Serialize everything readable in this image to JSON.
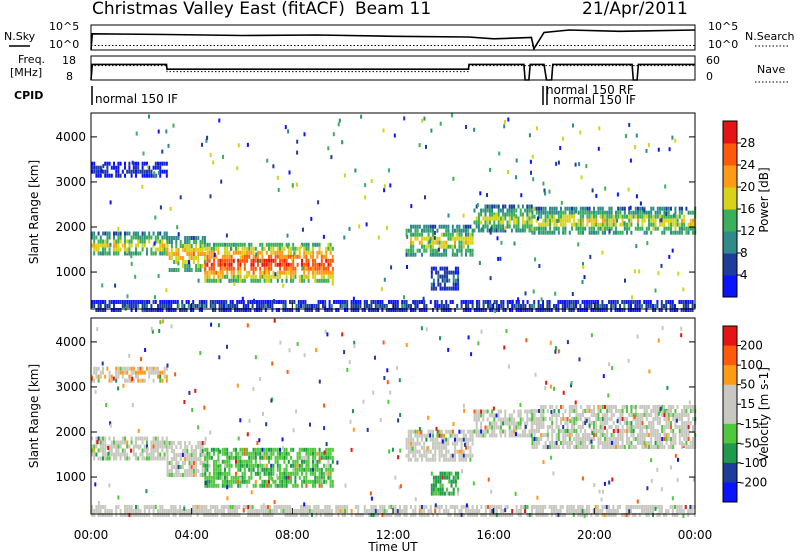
{
  "header": {
    "station": "Christmas Valley East (fitACF)",
    "beam": "Beam 11",
    "date": "21/Apr/2011"
  },
  "strip_labels": {
    "nsky": "N.Sky",
    "nsearch": "N.Search",
    "freq_line1": "Freq.",
    "freq_line2": "[MHz]",
    "nave": "Nave",
    "cpid": "CPID"
  },
  "strip_ticks": {
    "count_top": "10^5",
    "count_bottom": "10^0",
    "freq_top": "18",
    "freq_bottom": "8",
    "nave_top": "60",
    "nave_bottom": "0"
  },
  "cpid_labels": [
    "normal 150 IF",
    "normal 150 RF",
    "normal 150 IF"
  ],
  "colors": {
    "power": [
      "#0a14ff",
      "#1e3c9c",
      "#2f8a8a",
      "#3bb05a",
      "#d7d21a",
      "#ff9a14",
      "#ff5a0a",
      "#e61414"
    ],
    "velocity": [
      "#e61414",
      "#ff5a0a",
      "#ff9a14",
      "#c8c8c0",
      "#c8c8c0",
      "#50c83c",
      "#1e9a4a",
      "#1e3c9c",
      "#0a14ff"
    ],
    "ground_scatter": "#c8c8c0"
  },
  "chart_data": [
    {
      "type": "heatmap",
      "panel": "power",
      "ylabel": "Slant Range [km]",
      "yticks": [
        "1000",
        "2000",
        "3000",
        "4000"
      ],
      "ylim": [
        180,
        4530
      ],
      "xlim": [
        0,
        24
      ],
      "colorbar_label": "Power [dB]",
      "colorbar_ticks": [
        "4",
        "8",
        "12",
        "16",
        "20",
        "24",
        "28"
      ],
      "scatter_regions": [
        {
          "t0": 0.0,
          "t1": 3.0,
          "r0": 1380,
          "r1": 1900,
          "peak": 0.6
        },
        {
          "t0": 3.0,
          "t1": 4.5,
          "r0": 1050,
          "r1": 1800,
          "peak": 0.7
        },
        {
          "t0": 4.5,
          "t1": 9.6,
          "r0": 820,
          "r1": 1650,
          "peak": 0.92
        },
        {
          "t0": 12.5,
          "t1": 15.2,
          "r0": 1380,
          "r1": 2050,
          "peak": 0.6
        },
        {
          "t0": 15.2,
          "t1": 17.5,
          "r0": 1900,
          "r1": 2500,
          "peak": 0.55
        },
        {
          "t0": 17.5,
          "t1": 24.0,
          "r0": 1850,
          "r1": 2450,
          "peak": 0.6
        },
        {
          "t0": 0.0,
          "t1": 3.0,
          "r0": 3150,
          "r1": 3450,
          "peak": 0.15
        },
        {
          "t0": 13.5,
          "t1": 14.6,
          "r0": 650,
          "r1": 1120,
          "peak": 0.25
        },
        {
          "t0": 0.0,
          "t1": 24.0,
          "r0": 180,
          "r1": 380,
          "peak": 0.2
        }
      ]
    },
    {
      "type": "heatmap",
      "panel": "velocity",
      "ylabel": "Slant Range [km]",
      "yticks": [
        "1000",
        "2000",
        "3000",
        "4000"
      ],
      "ylim": [
        180,
        4530
      ],
      "xlim": [
        0,
        24
      ],
      "xticks": [
        "00:00",
        "04:00",
        "08:00",
        "12:00",
        "16:00",
        "20:00",
        "00:00"
      ],
      "xlabel": "Time UT",
      "colorbar_label": "Velocity [m s-1]",
      "colorbar_ticks": [
        "200",
        "100",
        "50",
        "15",
        "-15",
        "-50",
        "-100",
        "-200"
      ],
      "scatter_regions": [
        {
          "t0": 0.0,
          "t1": 3.0,
          "r0": 1380,
          "r1": 1900,
          "vel": 0.5
        },
        {
          "t0": 3.0,
          "t1": 4.5,
          "r0": 1050,
          "r1": 1800,
          "vel": 0.5
        },
        {
          "t0": 4.5,
          "t1": 9.6,
          "r0": 820,
          "r1": 1650,
          "vel": 0.65
        },
        {
          "t0": 12.5,
          "t1": 15.2,
          "r0": 1380,
          "r1": 2050,
          "vel": 0.4
        },
        {
          "t0": 15.2,
          "t1": 17.5,
          "r0": 1900,
          "r1": 2500,
          "vel": 0.5
        },
        {
          "t0": 17.5,
          "t1": 24.0,
          "r0": 1700,
          "r1": 2600,
          "vel": 0.5
        },
        {
          "t0": 0.0,
          "t1": 3.0,
          "r0": 3150,
          "r1": 3450,
          "vel": 0.35
        },
        {
          "t0": 13.5,
          "t1": 14.6,
          "r0": 650,
          "r1": 1120,
          "vel": 0.7
        },
        {
          "t0": 0.0,
          "t1": 24.0,
          "r0": 180,
          "r1": 380,
          "vel": 0.45
        }
      ]
    }
  ]
}
